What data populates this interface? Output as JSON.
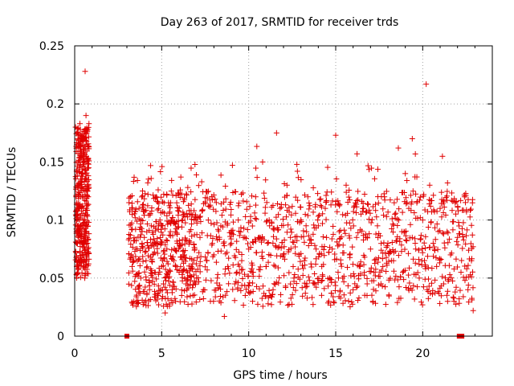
{
  "chart_data": {
    "type": "scatter",
    "title": "Day 263 of 2017, SRMTID for receiver trds",
    "xlabel": "GPS time / hours",
    "ylabel": "SRMTID / TECUs",
    "xlim": [
      0,
      24
    ],
    "ylim": [
      0,
      0.25
    ],
    "x_ticks": [
      0,
      5,
      10,
      15,
      20
    ],
    "y_ticks": [
      0,
      0.05,
      0.1,
      0.15,
      0.2,
      0.25
    ],
    "x_tick_labels": [
      "0",
      "5",
      "10",
      "15",
      "20"
    ],
    "y_tick_labels": [
      "0",
      "0.05",
      "0.1",
      "0.15",
      "0.2",
      "0.25"
    ],
    "grid": true,
    "legend": "none",
    "marker": "+",
    "color": "#e00000",
    "series": [
      {
        "values_description": "SRMTID samples; dense cloud roughly between 0.02 and 0.14 TECU from ~3.0h to ~22.8h, plus early burst 0-0.8h with higher values",
        "points": [
          [
            0.05,
            0.18
          ],
          [
            0.08,
            0.12
          ],
          [
            0.1,
            0.09
          ],
          [
            0.12,
            0.165
          ],
          [
            0.15,
            0.13
          ],
          [
            0.18,
            0.105
          ],
          [
            0.2,
            0.15
          ],
          [
            0.22,
            0.085
          ],
          [
            0.25,
            0.145
          ],
          [
            0.28,
            0.11
          ],
          [
            0.3,
            0.183
          ],
          [
            0.32,
            0.095
          ],
          [
            0.35,
            0.12
          ],
          [
            0.38,
            0.088
          ],
          [
            0.4,
            0.17
          ],
          [
            0.42,
            0.07
          ],
          [
            0.45,
            0.14
          ],
          [
            0.48,
            0.1
          ],
          [
            0.5,
            0.06
          ],
          [
            0.52,
            0.158
          ],
          [
            0.55,
            0.092
          ],
          [
            0.58,
            0.05
          ],
          [
            0.6,
            0.228
          ],
          [
            0.62,
            0.135
          ],
          [
            0.65,
            0.19
          ],
          [
            0.68,
            0.11
          ],
          [
            0.7,
            0.165
          ],
          [
            0.72,
            0.085
          ],
          [
            0.75,
            0.178
          ],
          [
            0.78,
            0.12
          ],
          [
            0.8,
            0.145
          ],
          [
            0.82,
            0.183
          ],
          [
            3.1,
            0.083
          ],
          [
            3.2,
            0.12
          ],
          [
            3.3,
            0.06
          ],
          [
            3.4,
            0.03
          ],
          [
            3.5,
            0.092
          ],
          [
            3.6,
            0.075
          ],
          [
            3.7,
            0.11
          ],
          [
            3.8,
            0.05
          ],
          [
            3.9,
            0.125
          ],
          [
            4.0,
            0.085
          ],
          [
            4.1,
            0.065
          ],
          [
            4.2,
            0.132
          ],
          [
            4.3,
            0.04
          ],
          [
            4.4,
            0.095
          ],
          [
            4.5,
            0.07
          ],
          [
            4.6,
            0.055
          ],
          [
            4.7,
            0.08
          ],
          [
            4.8,
            0.035
          ],
          [
            4.9,
            0.1
          ],
          [
            5.0,
            0.06
          ],
          [
            5.1,
            0.045
          ],
          [
            5.2,
            0.02
          ],
          [
            5.3,
            0.075
          ],
          [
            5.4,
            0.05
          ],
          [
            5.5,
            0.09
          ],
          [
            5.6,
            0.04
          ],
          [
            5.7,
            0.065
          ],
          [
            5.8,
            0.03
          ],
          [
            5.9,
            0.08
          ],
          [
            6.0,
            0.055
          ],
          [
            6.1,
            0.137
          ],
          [
            6.2,
            0.1
          ],
          [
            6.3,
            0.07
          ],
          [
            6.4,
            0.045
          ],
          [
            6.5,
            0.128
          ],
          [
            6.6,
            0.09
          ],
          [
            6.7,
            0.06
          ],
          [
            6.8,
            0.035
          ],
          [
            6.9,
            0.075
          ],
          [
            7.0,
            0.05
          ],
          [
            7.2,
            0.085
          ],
          [
            7.4,
            0.04
          ],
          [
            7.6,
            0.065
          ],
          [
            7.8,
            0.03
          ],
          [
            8.0,
            0.07
          ],
          [
            8.2,
            0.05
          ],
          [
            8.4,
            0.095
          ],
          [
            8.6,
            0.017
          ],
          [
            8.8,
            0.06
          ],
          [
            9.0,
            0.08
          ],
          [
            9.2,
            0.045
          ],
          [
            9.4,
            0.1
          ],
          [
            9.6,
            0.065
          ],
          [
            9.8,
            0.035
          ],
          [
            10.0,
            0.075
          ],
          [
            10.2,
            0.055
          ],
          [
            10.4,
            0.12
          ],
          [
            10.6,
            0.085
          ],
          [
            10.8,
            0.15
          ],
          [
            11.0,
            0.06
          ],
          [
            11.2,
            0.095
          ],
          [
            11.4,
            0.04
          ],
          [
            11.6,
            0.175
          ],
          [
            11.8,
            0.11
          ],
          [
            12.0,
            0.07
          ],
          [
            12.2,
            0.13
          ],
          [
            12.4,
            0.085
          ],
          [
            12.6,
            0.05
          ],
          [
            12.8,
            0.142
          ],
          [
            13.0,
            0.1
          ],
          [
            13.2,
            0.065
          ],
          [
            13.4,
            0.12
          ],
          [
            13.6,
            0.08
          ],
          [
            13.8,
            0.045
          ],
          [
            14.0,
            0.095
          ],
          [
            14.2,
            0.06
          ],
          [
            14.4,
            0.11
          ],
          [
            14.6,
            0.03
          ],
          [
            14.8,
            0.075
          ],
          [
            15.0,
            0.173
          ],
          [
            15.2,
            0.09
          ],
          [
            15.4,
            0.05
          ],
          [
            15.6,
            0.13
          ],
          [
            15.8,
            0.07
          ],
          [
            16.0,
            0.04
          ],
          [
            16.2,
            0.085
          ],
          [
            16.4,
            0.06
          ],
          [
            16.6,
            0.11
          ],
          [
            16.8,
            0.035
          ],
          [
            17.0,
            0.075
          ],
          [
            17.2,
            0.055
          ],
          [
            17.4,
            0.095
          ],
          [
            17.6,
            0.045
          ],
          [
            17.8,
            0.12
          ],
          [
            18.0,
            0.08
          ],
          [
            18.2,
            0.065
          ],
          [
            18.4,
            0.105
          ],
          [
            18.6,
            0.162
          ],
          [
            18.8,
            0.09
          ],
          [
            19.0,
            0.14
          ],
          [
            19.2,
            0.11
          ],
          [
            19.4,
            0.17
          ],
          [
            19.6,
            0.075
          ],
          [
            19.8,
            0.05
          ],
          [
            20.0,
            0.1
          ],
          [
            20.2,
            0.217
          ],
          [
            20.4,
            0.13
          ],
          [
            20.6,
            0.08
          ],
          [
            20.8,
            0.06
          ],
          [
            21.0,
            0.11
          ],
          [
            21.2,
            0.045
          ],
          [
            21.4,
            0.09
          ],
          [
            21.6,
            0.07
          ],
          [
            21.8,
            0.03
          ],
          [
            22.0,
            0.085
          ],
          [
            22.2,
            0.055
          ],
          [
            22.4,
            0.12
          ],
          [
            22.6,
            0.04
          ],
          [
            22.8,
            0.065
          ],
          [
            22.9,
            0.022
          ]
        ]
      }
    ],
    "axis_markers": [
      {
        "x": 3.0,
        "y": 0
      },
      {
        "x": 22.1,
        "y": 0
      },
      {
        "x": 22.25,
        "y": 0
      }
    ]
  }
}
